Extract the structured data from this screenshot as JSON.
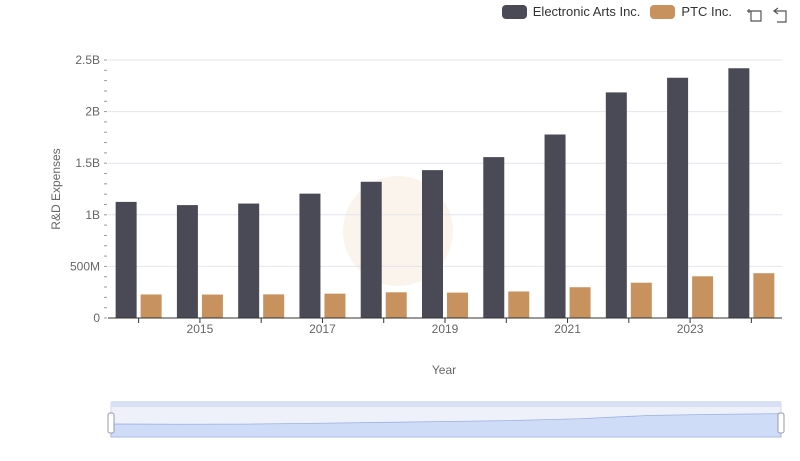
{
  "legend": {
    "series_a": {
      "label": "Electronic Arts Inc.",
      "color": "#4a4a56"
    },
    "series_b": {
      "label": "PTC Inc.",
      "color": "#c8925e"
    }
  },
  "toolbox": {
    "zoom_icon": "zoom-icon",
    "restore_icon": "restore-icon"
  },
  "chart_data": {
    "type": "bar",
    "title": "",
    "xlabel": "Year",
    "ylabel": "R&D Expenses",
    "ylim": [
      0,
      2500000000
    ],
    "y_ticks": [
      {
        "value": 0,
        "label": "0"
      },
      {
        "value": 500000000,
        "label": "500M"
      },
      {
        "value": 1000000000,
        "label": "1B"
      },
      {
        "value": 1500000000,
        "label": "1.5B"
      },
      {
        "value": 2000000000,
        "label": "2B"
      },
      {
        "value": 2500000000,
        "label": "2.5B"
      }
    ],
    "categories": [
      "2014",
      "2015",
      "2016",
      "2017",
      "2018",
      "2019",
      "2020",
      "2021",
      "2022",
      "2023",
      "2024"
    ],
    "x_tick_labels": [
      "2015",
      "2017",
      "2019",
      "2021",
      "2023"
    ],
    "series": [
      {
        "name": "Electronic Arts Inc.",
        "color": "#4a4a56",
        "values": [
          1125000000,
          1094000000,
          1109000000,
          1205000000,
          1320000000,
          1433000000,
          1559000000,
          1778000000,
          2186000000,
          2328000000,
          2420000000
        ]
      },
      {
        "name": "PTC Inc.",
        "color": "#c8925e",
        "values": [
          228000000,
          227000000,
          229000000,
          236000000,
          249000000,
          246000000,
          257000000,
          298000000,
          342000000,
          404000000,
          434000000
        ]
      }
    ],
    "grid": true,
    "legend_position": "top-right"
  }
}
